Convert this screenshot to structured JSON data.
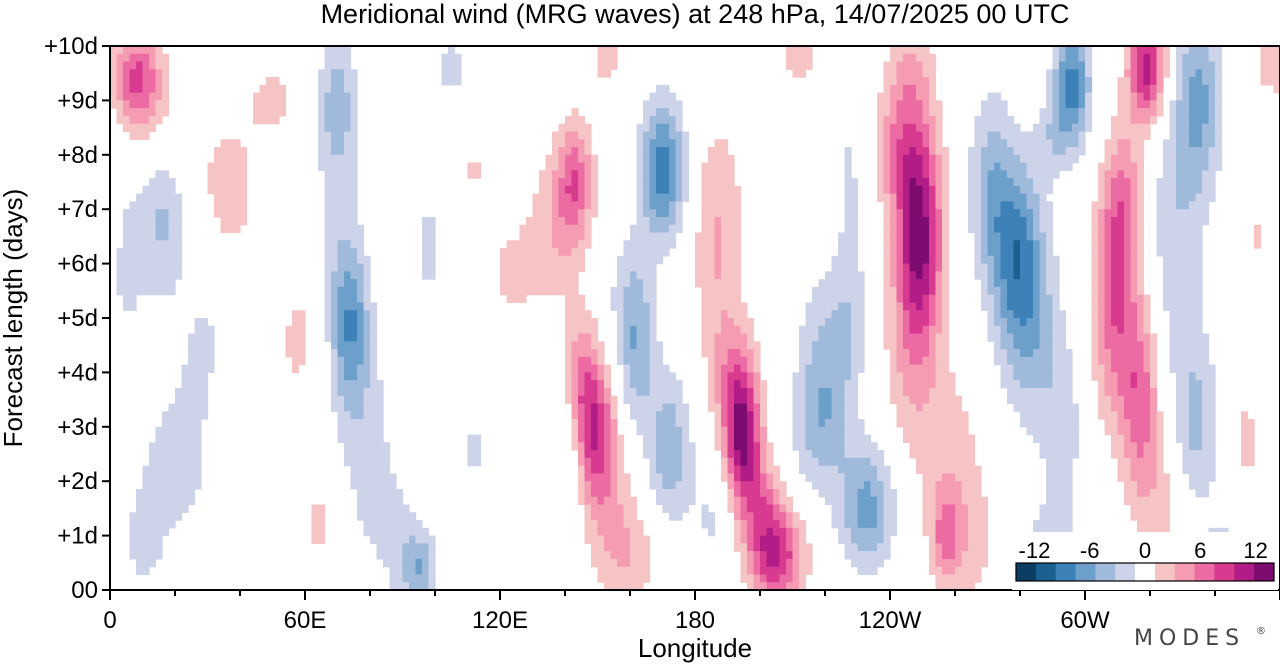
{
  "chart_data": {
    "type": "heatmap",
    "title": "Meridional wind (MRG waves) at  248 hPa,  14/07/2025  00 UTC",
    "xlabel": "Longitude",
    "ylabel": "Forecast length (days)",
    "x_ticks": [
      "0",
      "60E",
      "120E",
      "180",
      "120W",
      "60W"
    ],
    "x_tick_lon": [
      0,
      60,
      120,
      180,
      240,
      300
    ],
    "x_range_lon": [
      0,
      360
    ],
    "y_ticks": [
      "00",
      "+1d",
      "+2d",
      "+3d",
      "+4d",
      "+5d",
      "+6d",
      "+7d",
      "+8d",
      "+9d",
      "+10d"
    ],
    "y_range_days": [
      0,
      10
    ],
    "colorbar": {
      "tick_labels": [
        "-12",
        "-6",
        "0",
        "6",
        "12"
      ],
      "tick_values": [
        -12,
        -6,
        0,
        6,
        12
      ],
      "levels": [
        -14,
        -12,
        -10,
        -8,
        -6,
        -4,
        -2,
        2,
        4,
        6,
        8,
        10,
        12,
        14
      ],
      "colors": [
        "#0b3d63",
        "#1c5f92",
        "#3c82b9",
        "#6d9fcb",
        "#9fbadb",
        "#cdd3e8",
        "#ffffff",
        "#f7c4c6",
        "#f59cb3",
        "#ec6ba2",
        "#d73a8f",
        "#b11c86",
        "#7e0b70"
      ]
    },
    "features": [
      {
        "lon": 8,
        "day": 9.4,
        "amp": 8,
        "sx": 5,
        "sy": 0.6
      },
      {
        "lon": 15,
        "day": 8.6,
        "amp": 2.6,
        "sx": 7,
        "sy": 0.9
      },
      {
        "lon": 36,
        "day": 7.2,
        "amp": 3.2,
        "sx": 7,
        "sy": 1.1
      },
      {
        "lon": 50,
        "day": 9.0,
        "amp": 2.4,
        "sx": 6,
        "sy": 0.6
      },
      {
        "lon": 58,
        "day": 4.6,
        "amp": 2.6,
        "sx": 5,
        "sy": 0.8
      },
      {
        "lon": 64,
        "day": 1.2,
        "amp": 2.4,
        "sx": 4,
        "sy": 0.8
      },
      {
        "lon": 37,
        "day": 2.8,
        "amp": 2.3,
        "sx": 5,
        "sy": 0.9
      },
      {
        "lon": 16,
        "day": 7.0,
        "amp": -4.5,
        "sx": 5,
        "sy": 1.1
      },
      {
        "lon": 4,
        "day": 6.0,
        "amp": -2.6,
        "sx": 5,
        "sy": 1.3
      },
      {
        "lon": 30,
        "day": 4.6,
        "amp": -2.3,
        "sx": 7,
        "sy": 1.5
      },
      {
        "lon": 20,
        "day": 2.3,
        "amp": -2.6,
        "sx": 9,
        "sy": 1.1
      },
      {
        "lon": 10,
        "day": 0.8,
        "amp": -2.2,
        "sx": 5,
        "sy": 0.8
      },
      {
        "lon": 70,
        "day": 7.3,
        "amp": -2.6,
        "sx": 5,
        "sy": 2.0
      },
      {
        "lon": 74,
        "day": 4.9,
        "amp": -6.8,
        "sx": 4,
        "sy": 1.0
      },
      {
        "lon": 70,
        "day": 9.0,
        "amp": -3.6,
        "sx": 4,
        "sy": 0.8
      },
      {
        "lon": 78,
        "day": 3.0,
        "amp": -2.8,
        "sx": 6,
        "sy": 1.3
      },
      {
        "lon": 86,
        "day": 1.0,
        "amp": -2.6,
        "sx": 6,
        "sy": 1.0
      },
      {
        "lon": 95,
        "day": 0.4,
        "amp": -5.4,
        "sx": 4,
        "sy": 0.5
      },
      {
        "lon": 98,
        "day": 6.3,
        "amp": -2.3,
        "sx": 5,
        "sy": 1.2
      },
      {
        "lon": 105,
        "day": 9.6,
        "amp": -2.6,
        "sx": 4,
        "sy": 0.5
      },
      {
        "lon": 112,
        "day": 2.6,
        "amp": -2.3,
        "sx": 4,
        "sy": 0.7
      },
      {
        "lon": 136,
        "day": 6.6,
        "amp": 3.3,
        "sx": 6,
        "sy": 1.0
      },
      {
        "lon": 143,
        "day": 7.5,
        "amp": 7.2,
        "sx": 4,
        "sy": 0.8
      },
      {
        "lon": 123,
        "day": 5.8,
        "amp": 2.4,
        "sx": 6,
        "sy": 0.7
      },
      {
        "lon": 112,
        "day": 7.7,
        "amp": 2.2,
        "sx": 4,
        "sy": 0.4
      },
      {
        "lon": 153,
        "day": 9.8,
        "amp": 2.6,
        "sx": 5,
        "sy": 0.5
      },
      {
        "lon": 145,
        "day": 3.8,
        "amp": 6.0,
        "sx": 4,
        "sy": 0.9
      },
      {
        "lon": 150,
        "day": 2.8,
        "amp": 8.4,
        "sx": 4,
        "sy": 0.9
      },
      {
        "lon": 155,
        "day": 1.3,
        "amp": 3.0,
        "sx": 6,
        "sy": 1.0
      },
      {
        "lon": 162,
        "day": 0.6,
        "amp": 2.6,
        "sx": 7,
        "sy": 0.6
      },
      {
        "lon": 78,
        "day": 0.3,
        "amp": 2.4,
        "sx": 4,
        "sy": 0.3
      },
      {
        "lon": 170,
        "day": 7.7,
        "amp": -9.2,
        "sx": 5,
        "sy": 0.9
      },
      {
        "lon": 160,
        "day": 5.5,
        "amp": -2.8,
        "sx": 5,
        "sy": 0.8
      },
      {
        "lon": 162,
        "day": 4.3,
        "amp": -5.0,
        "sx": 4,
        "sy": 0.9
      },
      {
        "lon": 172,
        "day": 2.6,
        "amp": -5.4,
        "sx": 5,
        "sy": 1.0
      },
      {
        "lon": 140,
        "day": 2.6,
        "amp": -3.0,
        "sx": 3.5,
        "sy": 0.8
      },
      {
        "lon": 186,
        "day": 1.3,
        "amp": -2.4,
        "sx": 5,
        "sy": 0.8
      },
      {
        "lon": 187,
        "day": 7.0,
        "amp": 3.2,
        "sx": 6,
        "sy": 1.3
      },
      {
        "lon": 187,
        "day": 4.8,
        "amp": 2.4,
        "sx": 5,
        "sy": 1.4
      },
      {
        "lon": 195,
        "day": 2.6,
        "amp": 11.5,
        "sx": 4,
        "sy": 0.9
      },
      {
        "lon": 193,
        "day": 3.8,
        "amp": 5.0,
        "sx": 4,
        "sy": 0.8
      },
      {
        "lon": 205,
        "day": 0.6,
        "amp": 9.8,
        "sx": 6,
        "sy": 0.6
      },
      {
        "lon": 212,
        "day": 9.8,
        "amp": 2.8,
        "sx": 5,
        "sy": 0.5
      },
      {
        "lon": 202,
        "day": 1.5,
        "amp": 4.5,
        "sx": 4,
        "sy": 0.6
      },
      {
        "lon": 220,
        "day": 4.0,
        "amp": -4.8,
        "sx": 6,
        "sy": 1.2
      },
      {
        "lon": 218,
        "day": 2.8,
        "amp": -2.6,
        "sx": 6,
        "sy": 0.8
      },
      {
        "lon": 228,
        "day": 5.0,
        "amp": -2.2,
        "sx": 4,
        "sy": 1.0
      },
      {
        "lon": 233,
        "day": 1.5,
        "amp": -6.8,
        "sx": 6,
        "sy": 0.8
      },
      {
        "lon": 228,
        "day": 7.8,
        "amp": -2.2,
        "sx": 4,
        "sy": 1.5
      },
      {
        "lon": 249,
        "day": 6.4,
        "amp": 12.5,
        "sx": 5,
        "sy": 1.3
      },
      {
        "lon": 244,
        "day": 8.2,
        "amp": 6.0,
        "sx": 6,
        "sy": 0.9
      },
      {
        "lon": 247,
        "day": 9.6,
        "amp": 3.0,
        "sx": 5,
        "sy": 0.5
      },
      {
        "lon": 246,
        "day": 4.2,
        "amp": 3.0,
        "sx": 6,
        "sy": 1.2
      },
      {
        "lon": 258,
        "day": 2.6,
        "amp": 2.8,
        "sx": 8,
        "sy": 1.2
      },
      {
        "lon": 263,
        "day": 0.8,
        "amp": 2.8,
        "sx": 7,
        "sy": 0.9
      },
      {
        "lon": 257,
        "day": 1.0,
        "amp": 4.5,
        "sx": 3,
        "sy": 0.6
      },
      {
        "lon": 279,
        "day": 6.2,
        "amp": -8.2,
        "sx": 6,
        "sy": 1.2
      },
      {
        "lon": 271,
        "day": 7.5,
        "amp": -4.4,
        "sx": 5,
        "sy": 1.2
      },
      {
        "lon": 283,
        "day": 4.6,
        "amp": -4.0,
        "sx": 6,
        "sy": 1.2
      },
      {
        "lon": 293,
        "day": 3.0,
        "amp": -3.0,
        "sx": 5,
        "sy": 1.3
      },
      {
        "lon": 296,
        "day": 9.3,
        "amp": -9.0,
        "sx": 4,
        "sy": 0.8
      },
      {
        "lon": 290,
        "day": 8.3,
        "amp": -2.8,
        "sx": 4,
        "sy": 0.5
      },
      {
        "lon": 289,
        "day": 0.4,
        "amp": -4.2,
        "sx": 6,
        "sy": 0.7
      },
      {
        "lon": 309,
        "day": 5.3,
        "amp": 7.6,
        "sx": 5,
        "sy": 1.5
      },
      {
        "lon": 317,
        "day": 3.5,
        "amp": 6.8,
        "sx": 4,
        "sy": 1.2
      },
      {
        "lon": 312,
        "day": 7.2,
        "amp": 5.0,
        "sx": 4,
        "sy": 1.0
      },
      {
        "lon": 319,
        "day": 9.6,
        "amp": 11.2,
        "sx": 4,
        "sy": 0.7
      },
      {
        "lon": 324,
        "day": 1.5,
        "amp": 3.0,
        "sx": 6,
        "sy": 1.0
      },
      {
        "lon": 335,
        "day": 9.0,
        "amp": -6.2,
        "sx": 5,
        "sy": 1.2
      },
      {
        "lon": 328,
        "day": 6.6,
        "amp": -3.4,
        "sx": 6,
        "sy": 1.8
      },
      {
        "lon": 334,
        "day": 3.0,
        "amp": -4.6,
        "sx": 5,
        "sy": 1.2
      },
      {
        "lon": 342,
        "day": 0.4,
        "amp": -3.6,
        "sx": 4,
        "sy": 0.6
      },
      {
        "lon": 354,
        "day": 6.2,
        "amp": 3.0,
        "sx": 5,
        "sy": 0.9
      },
      {
        "lon": 350,
        "day": 2.8,
        "amp": 2.6,
        "sx": 4,
        "sy": 0.8
      },
      {
        "lon": 352,
        "day": 5.0,
        "amp": -2.4,
        "sx": 4,
        "sy": 0.8
      },
      {
        "lon": 355,
        "day": 9.7,
        "amp": 2.4,
        "sx": 3,
        "sy": 0.5
      }
    ]
  },
  "branding": {
    "logo_text": "MODES",
    "mark": "®"
  }
}
